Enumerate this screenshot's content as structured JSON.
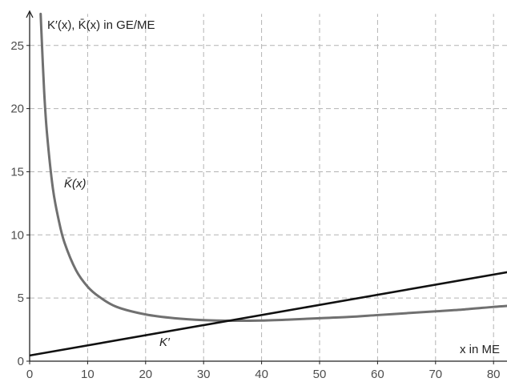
{
  "chart_data": {
    "type": "line",
    "title": "",
    "ylabel": "K′(x), K̄(x) in GE/ME",
    "xlabel": "x in ME",
    "xlim": [
      0,
      83
    ],
    "ylim": [
      0,
      27.5
    ],
    "x_ticks": [
      0,
      10,
      20,
      30,
      40,
      50,
      60,
      70,
      80
    ],
    "y_ticks": [
      0,
      5,
      10,
      15,
      20,
      25
    ],
    "x_tick_labels": [
      "0",
      "10",
      "20",
      "30",
      "40",
      "50",
      "60",
      "70",
      "80"
    ],
    "y_tick_labels": [
      "0",
      "5",
      "10",
      "15",
      "20",
      "25"
    ],
    "grid": true,
    "series": [
      {
        "name": "K̄(x)",
        "color": "#707070",
        "x": [
          1.9,
          2,
          2.5,
          3,
          4,
          5,
          6,
          8,
          10,
          12,
          15,
          20,
          25,
          30,
          35,
          40,
          45,
          50,
          55,
          60,
          65,
          70,
          75,
          80,
          83
        ],
        "y": [
          27.5,
          26.4,
          21.4,
          18.0,
          13.7,
          11.2,
          9.4,
          7.2,
          5.9,
          5.1,
          4.3,
          3.7,
          3.4,
          3.25,
          3.2,
          3.22,
          3.3,
          3.4,
          3.5,
          3.65,
          3.8,
          3.95,
          4.1,
          4.3,
          4.4
        ]
      },
      {
        "name": "K′",
        "color": "#111111",
        "x": [
          0,
          83
        ],
        "y": [
          0.45,
          7.1
        ]
      }
    ]
  }
}
